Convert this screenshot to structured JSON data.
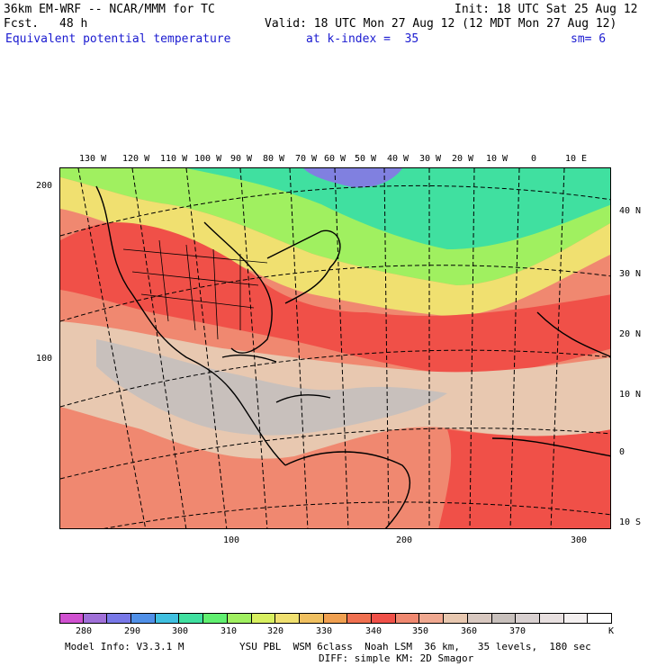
{
  "header": {
    "model_title": "36km EM-WRF -- NCAR/MMM for TC",
    "init": "Init: 18 UTC Sat 25 Aug 12",
    "fcst_label": "Fcst.",
    "fcst_value": "48 h",
    "valid": "Valid: 18 UTC Mon 27 Aug 12 (12 MDT Mon 27 Aug 12)",
    "field": "Equivalent potential temperature",
    "level": "at k-index =  35",
    "smoothing": "sm= 6"
  },
  "map": {
    "longitude_labels": [
      "130 W",
      "120 W",
      "110 W",
      "100 W",
      "90 W",
      "80 W",
      "70 W",
      "60 W",
      "50 W",
      "40 W",
      "30 W",
      "20 W",
      "10 W",
      "0",
      "10 E"
    ],
    "latitude_labels": [
      "40 N",
      "30 N",
      "20 N",
      "10 N",
      "0",
      "10 S"
    ],
    "grid_y_labels": [
      "200",
      "100"
    ],
    "grid_x_labels": [
      "100",
      "200",
      "300"
    ],
    "colors": {
      "cold": "#40e0a0",
      "cool": "#a0f060",
      "mild": "#f0e070",
      "warm": "#f0a050",
      "hot": "#f06050",
      "tan": "#e8c8b0",
      "gray": "#c8c0bc",
      "purple": "#8080e0"
    }
  },
  "legend": {
    "labels": [
      "280",
      "290",
      "300",
      "310",
      "320",
      "330",
      "340",
      "350",
      "360",
      "370"
    ],
    "unit": "K",
    "colors": [
      "#d050d0",
      "#a070d8",
      "#7878e8",
      "#5090e8",
      "#40c0e0",
      "#40e0a0",
      "#60f070",
      "#a0f060",
      "#d8f060",
      "#f0e070",
      "#f0c060",
      "#f0a050",
      "#f07050",
      "#f05048",
      "#f08870",
      "#f0a890",
      "#e8c8b0",
      "#d8c8c0",
      "#c8c0bc",
      "#d8d0d0",
      "#e8e0e0",
      "#f4f0f0",
      "#ffffff"
    ]
  },
  "footer": {
    "model_info": "Model Info: V3.3.1 M",
    "physics_line1": "YSU PBL  WSM 6class  Noah LSM  36 km,   35 levels,  180 sec",
    "physics_line2": "DIFF: simple KM: 2D Smagor"
  }
}
